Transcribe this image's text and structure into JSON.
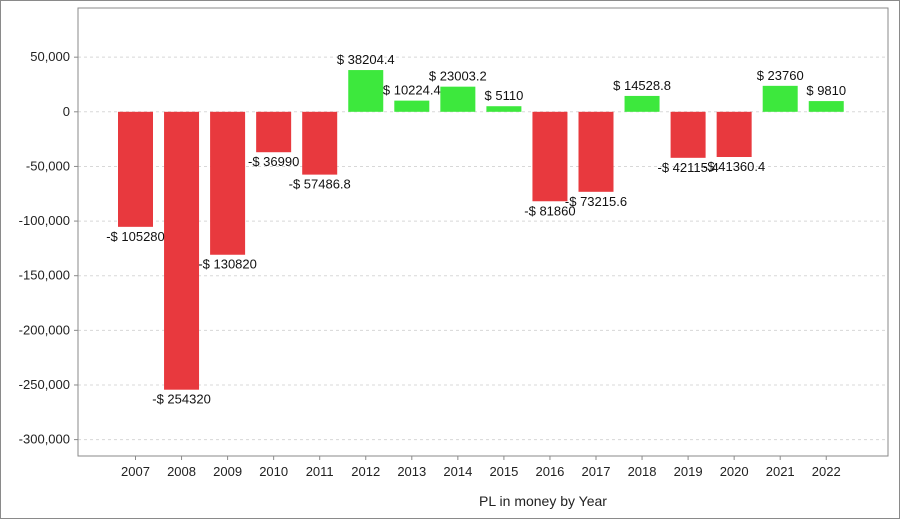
{
  "chart_data": {
    "type": "bar",
    "xlabel": "PL in money by Year",
    "ylabel": "",
    "title": "",
    "categories": [
      "2007",
      "2008",
      "2009",
      "2010",
      "2011",
      "2012",
      "2013",
      "2014",
      "2015",
      "2016",
      "2017",
      "2018",
      "2019",
      "2020",
      "2021",
      "2022"
    ],
    "values": [
      -105280,
      -254320,
      -130820,
      -36990,
      -57486.8,
      38204.4,
      10224.4,
      23003.2,
      5110,
      -81860,
      -73215.6,
      14528.8,
      -42115.4,
      -41360.4,
      23760,
      9810
    ],
    "data_labels": [
      "-$ 105280",
      "-$ 254320",
      "-$ 130820",
      "-$ 36990",
      "-$ 57486.8",
      "$ 38204.4",
      "$ 10224.4",
      "$ 23003.2",
      "$ 5110",
      "-$ 81860",
      "-$ 73215.6",
      "$ 14528.8",
      "-$ 42115.4",
      "-$ 41360.4",
      "$ 23760",
      "$ 9810"
    ],
    "y_ticks": [
      50000,
      0,
      -50000,
      -100000,
      -150000,
      -200000,
      -250000,
      -300000
    ],
    "y_tick_labels": [
      "50,000",
      "0",
      "-50,000",
      "-100,000",
      "-150,000",
      "-200,000",
      "-250,000",
      "-300,000"
    ],
    "ylim": [
      -315000,
      95000
    ],
    "grid": true,
    "colors": {
      "positive": "#3de83d",
      "negative": "#e8393e",
      "grid": "#d8d8d8",
      "axis": "#8a8a8a"
    }
  }
}
